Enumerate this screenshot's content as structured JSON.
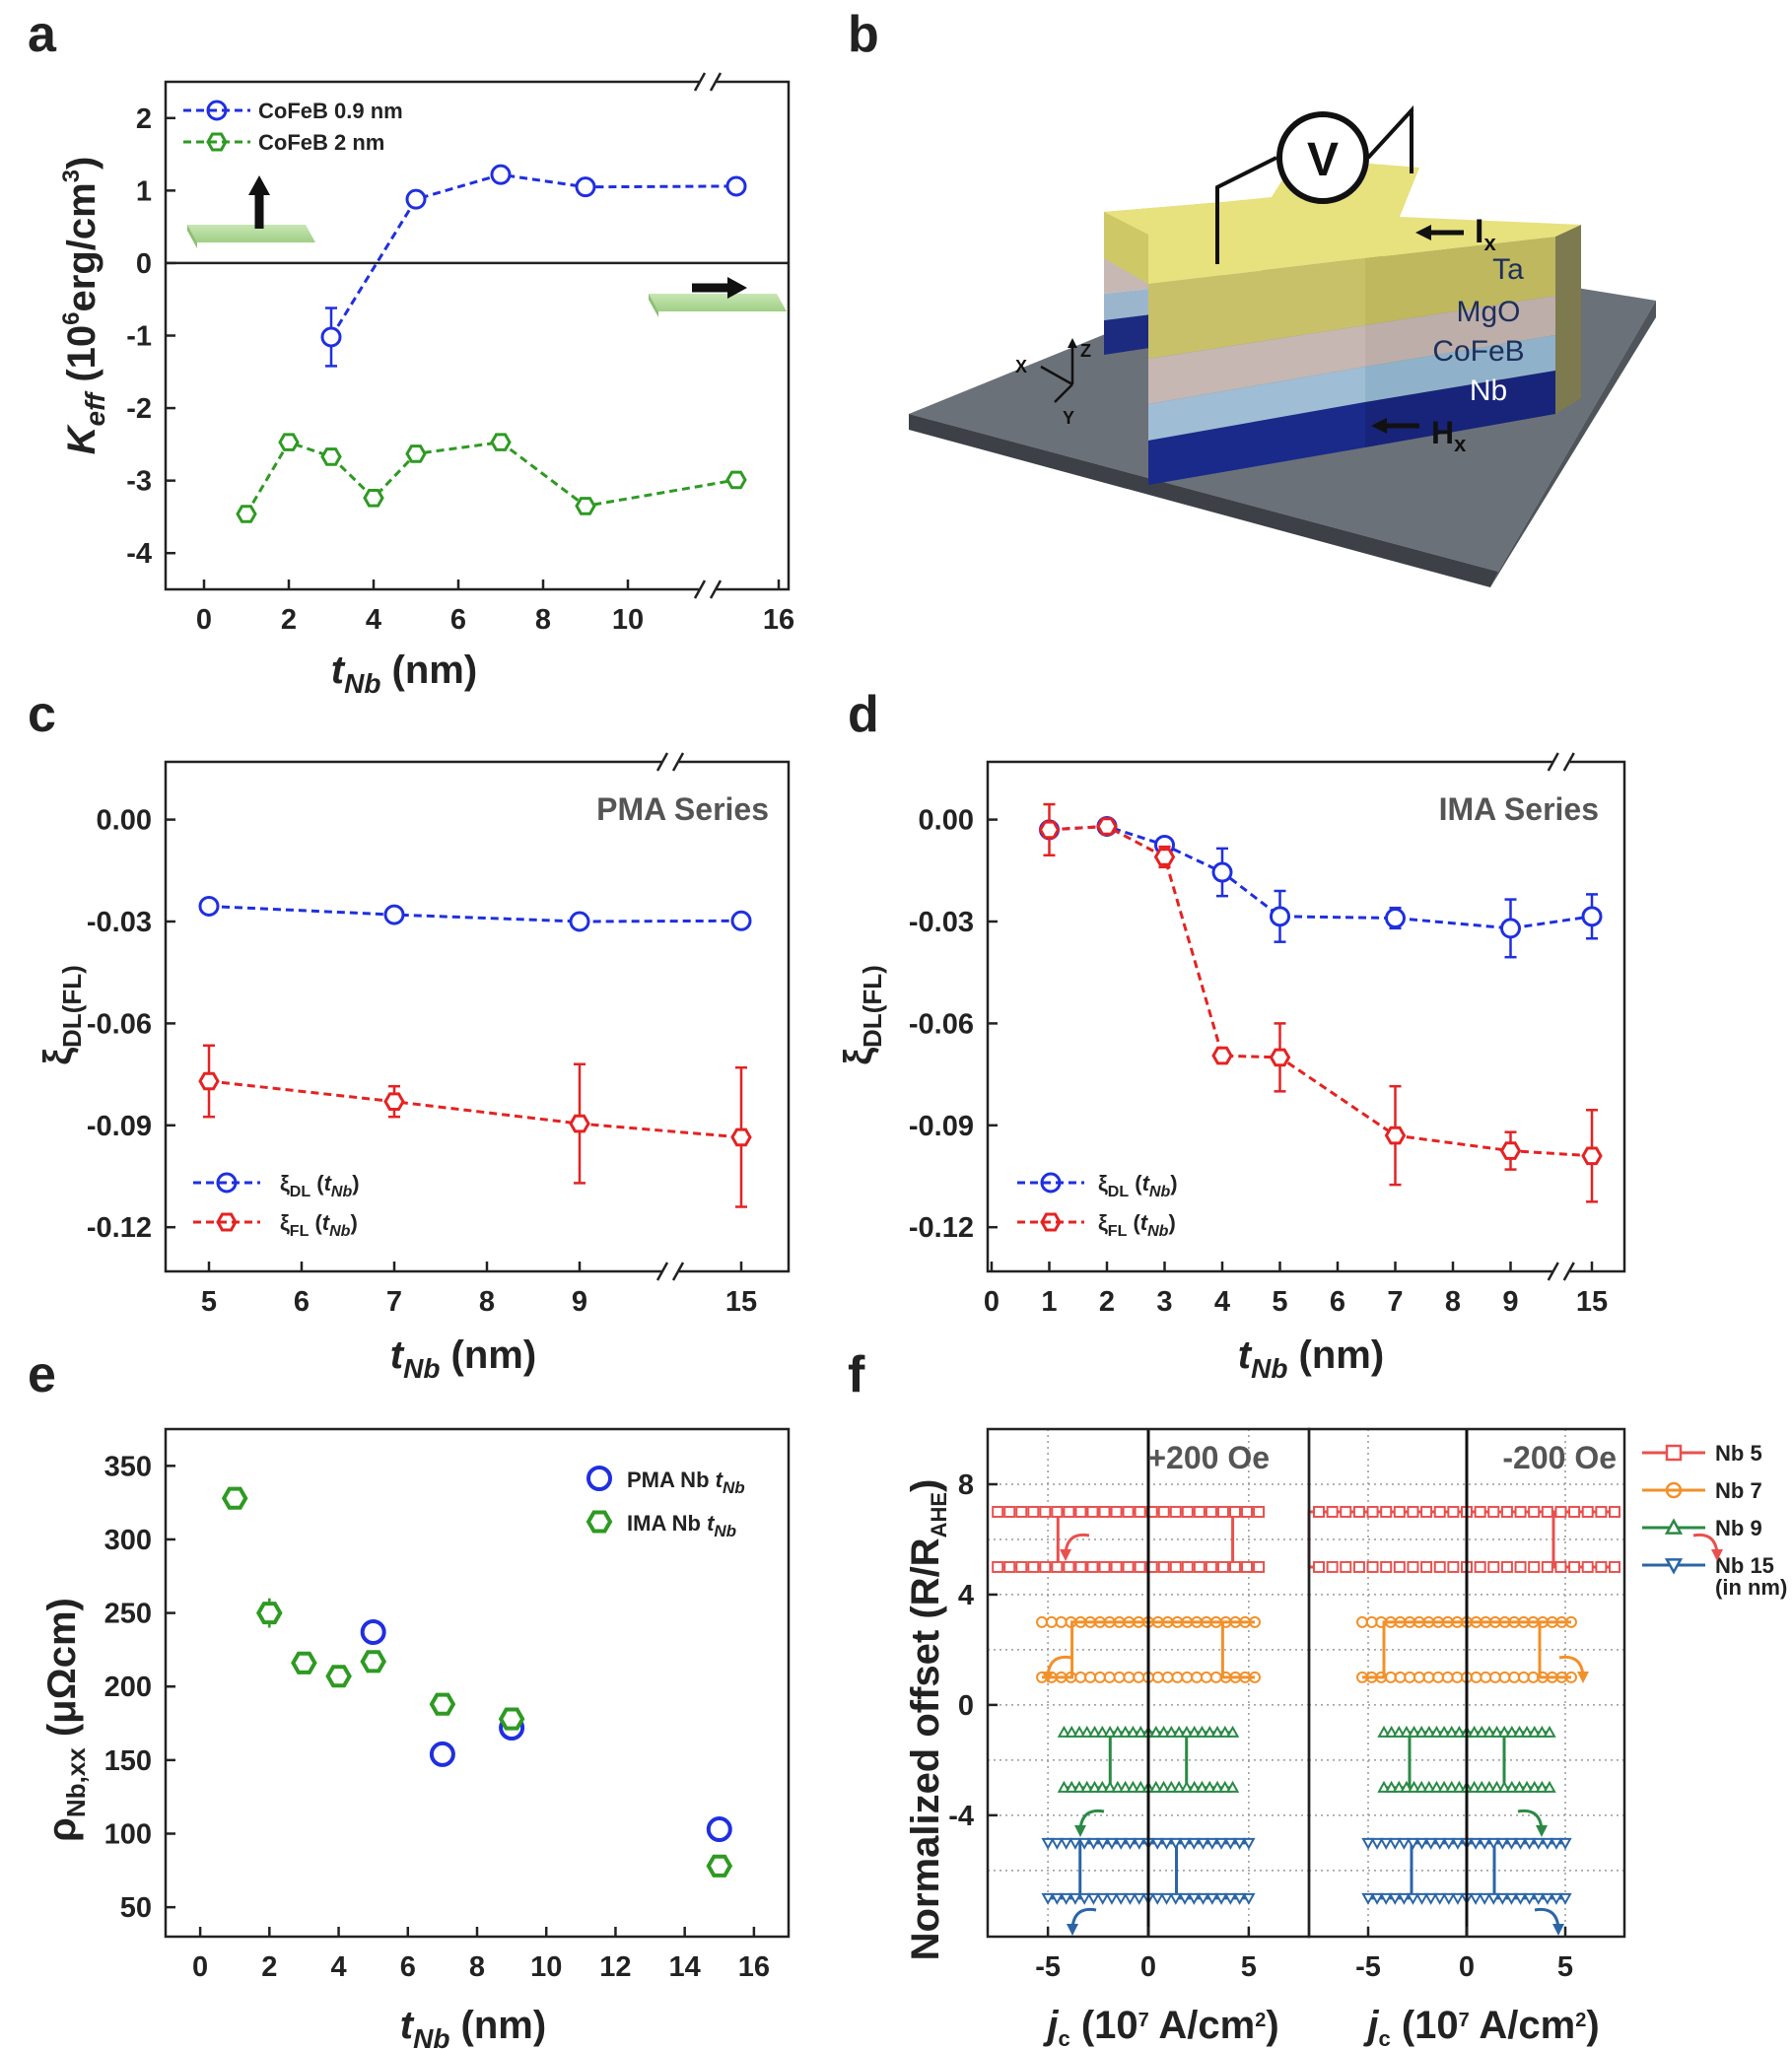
{
  "panel_labels": [
    "a",
    "b",
    "c",
    "d",
    "e",
    "f"
  ],
  "colors": {
    "blue": "#1f2fe0",
    "green": "#2e9a22",
    "red": "#e52222",
    "nb5": "#e8514e",
    "nb7": "#f2902a",
    "nb9": "#2a8a45",
    "nb15": "#2b65a6"
  },
  "schematic": {
    "voltmeter": "V",
    "current": "I",
    "current_sub": "x",
    "field": "H",
    "field_sub": "x",
    "layers": [
      "Ta",
      "MgO",
      "CoFeB",
      "Nb"
    ],
    "axis_x": "X",
    "axis_y": "Y",
    "axis_z": "Z"
  },
  "chart_data": [
    {
      "panel": "a",
      "type": "line",
      "xlabel_main": "t",
      "xlabel_sub": "Nb",
      "xlabel_unit": " (nm)",
      "ylabel_main": "K",
      "ylabel_sub": "eff",
      "ylabel_unit_pre": " (10",
      "ylabel_unit_sup": "6",
      "ylabel_unit_mid": "erg/cm",
      "ylabel_unit_sup2": "3",
      "ylabel_unit_post": ")",
      "x_ticks": [
        "0",
        "2",
        "4",
        "6",
        "8",
        "10",
        "16"
      ],
      "y_ticks": [
        "2",
        "1",
        "0",
        "-1",
        "-2",
        "-3",
        "-4"
      ],
      "ylim": [
        -4.5,
        2.5
      ],
      "x_axis_break": "between 12 and 14",
      "series": [
        {
          "name": "CoFeB 0.9 nm",
          "color": "blue",
          "marker": "circle",
          "x": [
            3,
            5,
            7,
            9,
            15
          ],
          "y": [
            -1.02,
            0.88,
            1.22,
            1.05,
            1.06
          ],
          "err": [
            0.4,
            0.08,
            0.06,
            0.07,
            0.05
          ]
        },
        {
          "name": "CoFeB 2 nm",
          "color": "green",
          "marker": "hexagon",
          "x": [
            1,
            2,
            3,
            4,
            5,
            7,
            9,
            15
          ],
          "y": [
            -3.46,
            -2.47,
            -2.67,
            -3.24,
            -2.63,
            -2.47,
            -3.35,
            -2.99
          ],
          "err": [
            0.05,
            0.05,
            0.06,
            0.05,
            0.05,
            0.05,
            0.05,
            0.05
          ]
        }
      ],
      "legend_position": "top-left",
      "insets": [
        "out-of-plane magnetization arrow",
        "in-plane magnetization arrow"
      ]
    },
    {
      "panel": "c",
      "type": "line",
      "annotation": "PMA Series",
      "xlabel_main": "t",
      "xlabel_sub": "Nb",
      "xlabel_unit": " (nm)",
      "ylabel_main": "ξ",
      "ylabel_sub": "DL(FL)",
      "x_ticks": [
        "5",
        "6",
        "7",
        "8",
        "9",
        "15"
      ],
      "y_ticks": [
        "0.00",
        "-0.03",
        "-0.06",
        "-0.09",
        "-0.12"
      ],
      "ylim": [
        -0.133,
        0.017
      ],
      "x_axis_break": "between 9 and 15",
      "series": [
        {
          "name": "ξDL (tNb)",
          "name_main": "ξ",
          "name_sub": "DL",
          "name_arg": "t",
          "name_arg_sub": "Nb",
          "color": "blue",
          "marker": "circle",
          "x": [
            5,
            7,
            9,
            15
          ],
          "y": [
            -0.0255,
            -0.028,
            -0.03,
            -0.0298
          ],
          "err": [
            0.0012,
            0.0012,
            0.0012,
            0.0012
          ]
        },
        {
          "name": "ξFL (tNb)",
          "name_main": "ξ",
          "name_sub": "FL",
          "name_arg": "t",
          "name_arg_sub": "Nb",
          "color": "red",
          "marker": "hexagon",
          "x": [
            5,
            7,
            9,
            15
          ],
          "y": [
            -0.077,
            -0.083,
            -0.0895,
            -0.0935
          ],
          "err": [
            0.0105,
            0.0045,
            0.0175,
            0.0205
          ]
        }
      ],
      "legend_position": "bottom-left"
    },
    {
      "panel": "d",
      "type": "line",
      "annotation": "IMA Series",
      "xlabel_main": "t",
      "xlabel_sub": "Nb",
      "xlabel_unit": " (nm)",
      "ylabel_main": "ξ",
      "ylabel_sub": "DL(FL)",
      "x_ticks": [
        "0",
        "1",
        "2",
        "3",
        "4",
        "5",
        "6",
        "7",
        "8",
        "9",
        "15"
      ],
      "y_ticks": [
        "0.00",
        "-0.03",
        "-0.06",
        "-0.09",
        "-0.12"
      ],
      "ylim": [
        -0.133,
        0.017
      ],
      "x_axis_break": "between 9 and 15",
      "series": [
        {
          "name": "ξDL (tNb)",
          "name_main": "ξ",
          "name_sub": "DL",
          "name_arg": "t",
          "name_arg_sub": "Nb",
          "color": "blue",
          "marker": "circle",
          "x": [
            1,
            2,
            3,
            4,
            5,
            7,
            9,
            15
          ],
          "y": [
            -0.003,
            -0.002,
            -0.0075,
            -0.0155,
            -0.0285,
            -0.029,
            -0.032,
            -0.0285
          ],
          "err": [
            0.002,
            0.002,
            0.002,
            0.007,
            0.0075,
            0.003,
            0.0085,
            0.0065
          ]
        },
        {
          "name": "ξFL (tNb)",
          "name_main": "ξ",
          "name_sub": "FL",
          "name_arg": "t",
          "name_arg_sub": "Nb",
          "color": "red",
          "marker": "hexagon",
          "x": [
            1,
            2,
            3,
            4,
            5,
            7,
            9,
            15
          ],
          "y": [
            -0.003,
            -0.002,
            -0.011,
            -0.0695,
            -0.07,
            -0.093,
            -0.0975,
            -0.099
          ],
          "err": [
            0.0075,
            0.002,
            0.003,
            0.002,
            0.01,
            0.0145,
            0.0055,
            0.0135
          ]
        }
      ],
      "legend_position": "bottom-left"
    },
    {
      "panel": "e",
      "type": "scatter",
      "xlabel_main": "t",
      "xlabel_sub": "Nb",
      "xlabel_unit": " (nm)",
      "ylabel_main": "ρ",
      "ylabel_sub": "Nb,xx",
      "ylabel_unit": " (μΩcm)",
      "x_ticks": [
        "0",
        "2",
        "4",
        "6",
        "8",
        "10",
        "12",
        "14",
        "16"
      ],
      "y_ticks": [
        "350",
        "300",
        "250",
        "200",
        "150",
        "100",
        "50"
      ],
      "xlim": [
        -1,
        17
      ],
      "ylim": [
        30,
        375
      ],
      "series": [
        {
          "name": "PMA Nb tNb",
          "name_main": "PMA Nb ",
          "name_arg": "t",
          "name_arg_sub": "Nb",
          "color": "blue",
          "marker": "circle",
          "x": [
            5,
            7,
            9,
            15
          ],
          "y": [
            237,
            154,
            172,
            103
          ],
          "err": [
            2,
            2,
            4,
            2
          ]
        },
        {
          "name": "IMA Nb tNb",
          "name_main": "IMA Nb ",
          "name_arg": "t",
          "name_arg_sub": "Nb",
          "color": "green",
          "marker": "hexagon",
          "x": [
            1,
            2,
            3,
            4,
            5,
            7,
            9,
            15
          ],
          "y": [
            328,
            250,
            216,
            207,
            217,
            188,
            178,
            78
          ],
          "err": [
            3,
            10,
            3,
            3,
            3,
            3,
            5,
            3
          ]
        }
      ],
      "legend_position": "top-right"
    },
    {
      "panel": "f",
      "type": "line",
      "ylabel": "Normalized offset (R/R",
      "ylabel_sub": "AHE",
      "ylabel_close": ")",
      "xlabel_main": "j",
      "xlabel_sub": "c",
      "xlabel_unit_pre": " (10",
      "xlabel_unit_sup": "7",
      "xlabel_unit_mid": " A/cm",
      "xlabel_unit_sup2": "2",
      "xlabel_unit_post": ")",
      "x_ticks": [
        "-5",
        "0",
        "5"
      ],
      "y_ticks": [
        "8",
        "4",
        "0",
        "-4"
      ],
      "xlim": [
        -8,
        8
      ],
      "ylim": [
        -8.4,
        10
      ],
      "subpanels": [
        "+200 Oe",
        "-200 Oe"
      ],
      "legend_note": "(in nm)",
      "series": [
        {
          "name": "Nb 5",
          "color": "nb5",
          "marker": "square",
          "left": {
            "lower": 5.0,
            "upper": 7.0,
            "x_from": -7.5,
            "x_to": 5.5,
            "switch_down": -4.5,
            "switch_up": 4.2
          },
          "right": {
            "lower": 5.0,
            "upper": 7.0,
            "x_from": -7.5,
            "x_to": 7.5,
            "switch_down": -8.0,
            "switch_up": 4.4
          }
        },
        {
          "name": "Nb 7",
          "color": "nb7",
          "marker": "circle",
          "left": {
            "lower": 1.0,
            "upper": 3.0,
            "x_from": -5.3,
            "x_to": 5.3,
            "switch_down": -3.8,
            "switch_up": 3.7
          },
          "right": {
            "lower": 1.0,
            "upper": 3.0,
            "x_from": -5.3,
            "x_to": 5.3,
            "switch_down": -4.2,
            "switch_up": 3.7
          }
        },
        {
          "name": "Nb 9",
          "color": "nb9",
          "marker": "triangle",
          "left": {
            "lower": -3.0,
            "upper": -1.0,
            "x_from": -4.2,
            "x_to": 4.2,
            "switch_down": -1.9,
            "switch_up": 1.9
          },
          "right": {
            "lower": -3.0,
            "upper": -1.0,
            "x_from": -4.2,
            "x_to": 4.2,
            "switch_down": -2.9,
            "switch_up": 1.9
          }
        },
        {
          "name": "Nb 15",
          "color": "nb15",
          "marker": "triangle-down",
          "left": {
            "lower": -7.0,
            "upper": -5.0,
            "x_from": -5.0,
            "x_to": 5.0,
            "switch_down": -3.4,
            "switch_up": 1.4
          },
          "right": {
            "lower": -7.0,
            "upper": -5.0,
            "x_from": -5.0,
            "x_to": 5.0,
            "switch_down": -2.8,
            "switch_up": 1.4
          }
        }
      ]
    }
  ]
}
